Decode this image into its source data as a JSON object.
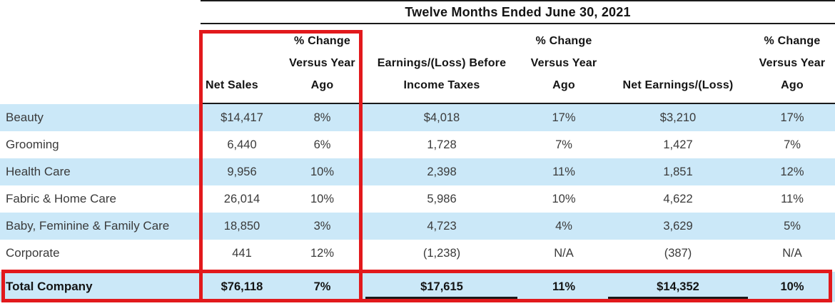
{
  "title": "Twelve Months Ended June 30, 2021",
  "header": {
    "segment": "",
    "net_sales": {
      "line3": "Net Sales"
    },
    "pct_change_1": {
      "line1": "% Change",
      "line2": "Versus Year",
      "line3": "Ago"
    },
    "earnings_before_taxes": {
      "line2": "Earnings/(Loss) Before",
      "line3": "Income Taxes"
    },
    "pct_change_2": {
      "line1": "% Change",
      "line2": "Versus Year",
      "line3": "Ago"
    },
    "net_earnings": {
      "line3": "Net Earnings/(Loss)"
    },
    "pct_change_3": {
      "line1": "% Change",
      "line2": "Versus Year",
      "line3": "Ago"
    }
  },
  "rows": [
    {
      "label": "Beauty",
      "net_sales": "$14,417",
      "ns_chg": "8%",
      "ebit": "$4,018",
      "ebit_chg": "17%",
      "net_earnings": "$3,210",
      "ne_chg": "17%"
    },
    {
      "label": "Grooming",
      "net_sales": "6,440",
      "ns_chg": "6%",
      "ebit": "1,728",
      "ebit_chg": "7%",
      "net_earnings": "1,427",
      "ne_chg": "7%"
    },
    {
      "label": "Health Care",
      "net_sales": "9,956",
      "ns_chg": "10%",
      "ebit": "2,398",
      "ebit_chg": "11%",
      "net_earnings": "1,851",
      "ne_chg": "12%"
    },
    {
      "label": "Fabric & Home Care",
      "net_sales": "26,014",
      "ns_chg": "10%",
      "ebit": "5,986",
      "ebit_chg": "10%",
      "net_earnings": "4,622",
      "ne_chg": "11%"
    },
    {
      "label": "Baby, Feminine & Family Care",
      "net_sales": "18,850",
      "ns_chg": "3%",
      "ebit": "4,723",
      "ebit_chg": "4%",
      "net_earnings": "3,629",
      "ne_chg": "5%"
    },
    {
      "label": "Corporate",
      "net_sales": "441",
      "ns_chg": "12%",
      "ebit": "(1,238)",
      "ebit_chg": "N/A",
      "net_earnings": "(387)",
      "ne_chg": "N/A"
    }
  ],
  "total_row": {
    "label": "Total Company",
    "net_sales": "$76,118",
    "ns_chg": "7%",
    "ebit": "$17,615",
    "ebit_chg": "11%",
    "net_earnings": "$14,352",
    "ne_chg": "10%"
  },
  "colors": {
    "row_blue": "#cbe8f8",
    "highlight_red": "#e2191c",
    "rule_black": "#1a1a1a"
  }
}
